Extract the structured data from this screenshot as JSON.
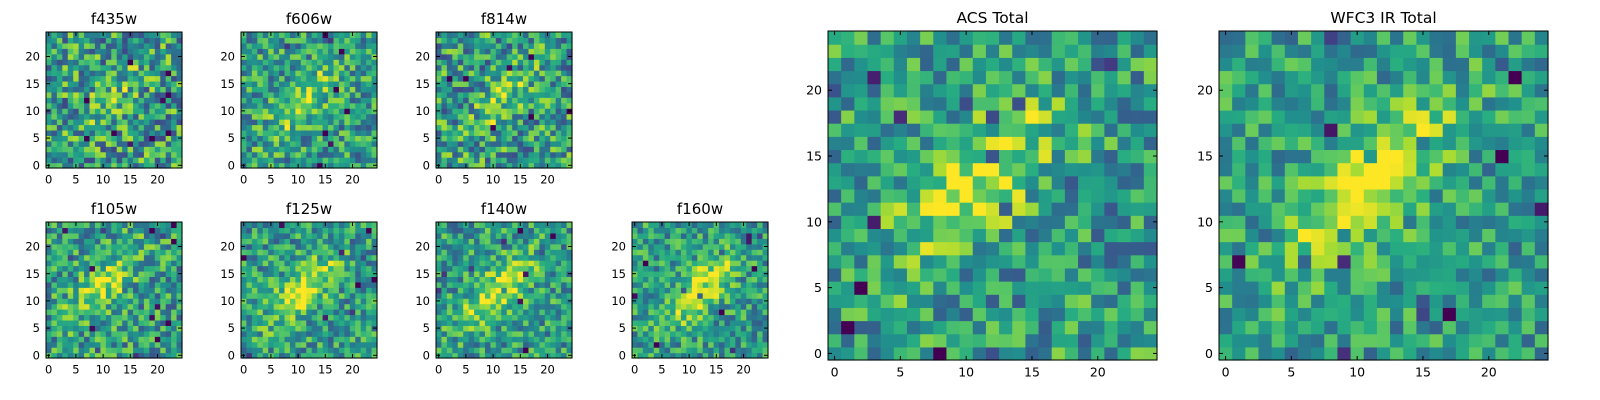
{
  "chart_data": [
    {
      "type": "heatmap",
      "title": "f435w",
      "grid_size": 25,
      "xticks": [
        "0",
        "5",
        "10",
        "15",
        "20"
      ],
      "yticks": [
        "0",
        "5",
        "10",
        "15",
        "20"
      ],
      "colormap": "viridis",
      "grid": false,
      "peak_center": [
        12,
        13
      ],
      "pattern_strength": 0.15
    },
    {
      "type": "heatmap",
      "title": "f606w",
      "grid_size": 25,
      "xticks": [
        "0",
        "5",
        "10",
        "15",
        "20"
      ],
      "yticks": [
        "0",
        "5",
        "10",
        "15",
        "20"
      ],
      "colormap": "viridis",
      "grid": false,
      "peak_center": [
        11,
        12
      ],
      "pattern_strength": 0.35
    },
    {
      "type": "heatmap",
      "title": "f814w",
      "grid_size": 25,
      "xticks": [
        "0",
        "5",
        "10",
        "15",
        "20"
      ],
      "yticks": [
        "0",
        "5",
        "10",
        "15",
        "20"
      ],
      "colormap": "viridis",
      "grid": false,
      "peak_center": [
        12,
        12
      ],
      "pattern_strength": 0.2
    },
    {
      "type": "heatmap",
      "title": "f105w",
      "grid_size": 25,
      "xticks": [
        "0",
        "5",
        "10",
        "15",
        "20"
      ],
      "yticks": [
        "0",
        "5",
        "10",
        "15",
        "20"
      ],
      "colormap": "viridis",
      "grid": false,
      "peak_center": [
        10,
        13
      ],
      "pattern_strength": 0.35
    },
    {
      "type": "heatmap",
      "title": "f125w",
      "grid_size": 25,
      "xticks": [
        "0",
        "5",
        "10",
        "15",
        "20"
      ],
      "yticks": [
        "0",
        "5",
        "10",
        "15",
        "20"
      ],
      "colormap": "viridis",
      "grid": false,
      "peak_center": [
        11,
        12
      ],
      "pattern_strength": 0.45
    },
    {
      "type": "heatmap",
      "title": "f140w",
      "grid_size": 25,
      "xticks": [
        "0",
        "5",
        "10",
        "15",
        "20"
      ],
      "yticks": [
        "0",
        "5",
        "10",
        "15",
        "20"
      ],
      "colormap": "viridis",
      "grid": false,
      "peak_center": [
        11,
        12
      ],
      "pattern_strength": 0.45
    },
    {
      "type": "heatmap",
      "title": "f160w",
      "grid_size": 25,
      "xticks": [
        "0",
        "5",
        "10",
        "15",
        "20"
      ],
      "yticks": [
        "0",
        "5",
        "10",
        "15",
        "20"
      ],
      "colormap": "viridis",
      "grid": false,
      "peak_center": [
        12,
        12
      ],
      "pattern_strength": 0.5
    },
    {
      "type": "heatmap",
      "title": "ACS Total",
      "grid_size": 25,
      "xticks": [
        "0",
        "5",
        "10",
        "15",
        "20"
      ],
      "yticks": [
        "0",
        "5",
        "10",
        "15",
        "20"
      ],
      "colormap": "viridis",
      "grid": false,
      "peak_center": [
        11,
        13
      ],
      "pattern_strength": 0.4
    },
    {
      "type": "heatmap",
      "title": "WFC3 IR Total",
      "grid_size": 25,
      "xticks": [
        "0",
        "5",
        "10",
        "15",
        "20"
      ],
      "yticks": [
        "0",
        "5",
        "10",
        "15",
        "20"
      ],
      "colormap": "viridis",
      "grid": false,
      "peak_center": [
        11,
        13
      ],
      "pattern_strength": 0.55
    }
  ]
}
